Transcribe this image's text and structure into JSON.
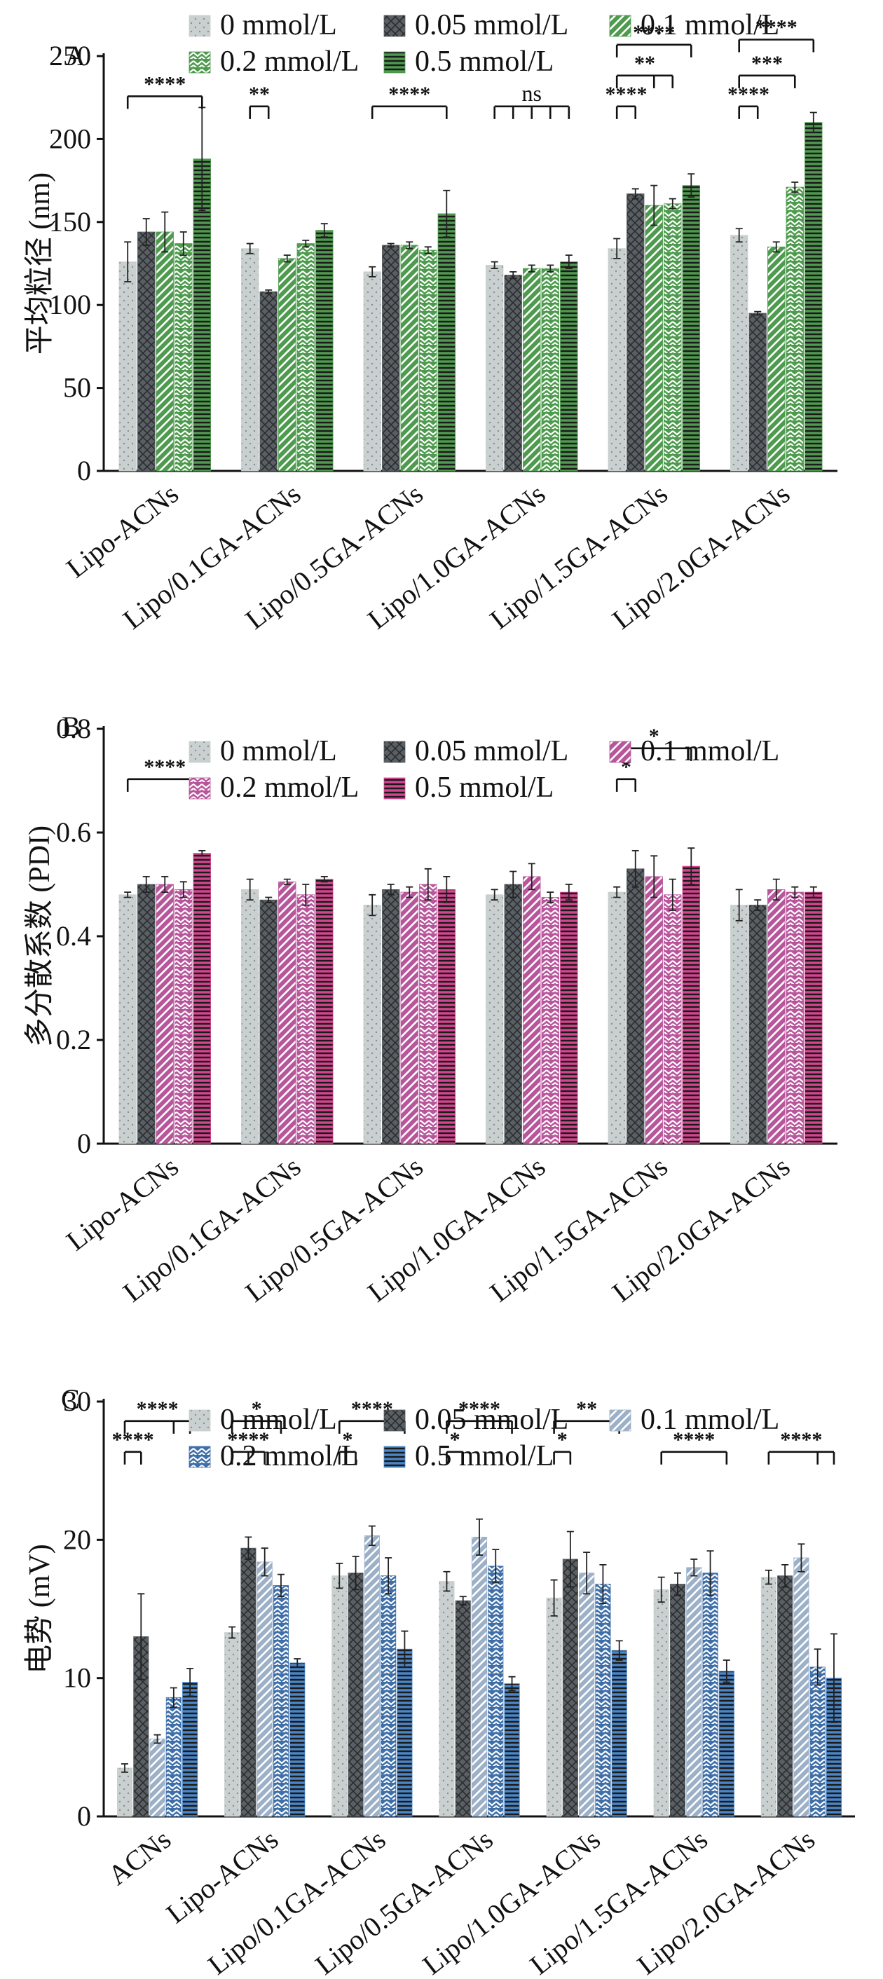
{
  "chart_data": [
    {
      "type": "bar",
      "panel": "A",
      "ylabel": "平均粒径 (nm)",
      "ylim": [
        0,
        250
      ],
      "yticks": [
        0,
        50,
        100,
        150,
        200,
        250
      ],
      "categories": [
        "Lipo-ACNs",
        "Lipo/0.1GA-ACNs",
        "Lipo/0.5GA-ACNs",
        "Lipo/1.0GA-ACNs",
        "Lipo/1.5GA-ACNs",
        "Lipo/2.0GA-ACNs"
      ],
      "series": [
        {
          "name": "0 mmol/L",
          "values": [
            126,
            134,
            120,
            124,
            134,
            142
          ],
          "errors": [
            12,
            3,
            3,
            2,
            6,
            4
          ]
        },
        {
          "name": "0.05 mmol/L",
          "values": [
            144,
            108,
            136,
            118,
            167,
            95
          ],
          "errors": [
            8,
            1,
            1,
            2,
            3,
            1
          ]
        },
        {
          "name": "0.1 mmol/L",
          "values": [
            144,
            128,
            136,
            122,
            160,
            135
          ],
          "errors": [
            12,
            2,
            2,
            2,
            12,
            3
          ]
        },
        {
          "name": "0.2 mmol/L",
          "values": [
            137,
            137,
            133,
            122,
            161,
            171
          ],
          "errors": [
            7,
            2,
            2,
            2,
            3,
            3
          ]
        },
        {
          "name": "0.5 mmol/L",
          "values": [
            188,
            145,
            155,
            126,
            172,
            210
          ],
          "errors": [
            31,
            4,
            14,
            4,
            7,
            6
          ]
        }
      ],
      "significance": [
        {
          "label": "****",
          "category": 0,
          "from": 0,
          "to": [
            4
          ]
        },
        {
          "label": "**",
          "category": 1,
          "from": 0,
          "to": [
            1
          ]
        },
        {
          "label": "****",
          "category": 2,
          "from": 0,
          "to": [
            4
          ]
        },
        {
          "label": "ns",
          "category": 3,
          "from": 0,
          "to": [
            1,
            2,
            3,
            4
          ]
        },
        {
          "label": "****",
          "category": 4,
          "from": 0,
          "to": [
            1
          ]
        },
        {
          "label": "**",
          "category": 4,
          "from": 0,
          "to": [
            2,
            3
          ]
        },
        {
          "label": "****",
          "category": 4,
          "from": 0,
          "to": [
            4
          ]
        },
        {
          "label": "****",
          "category": 5,
          "from": 0,
          "to": [
            1
          ]
        },
        {
          "label": "***",
          "category": 5,
          "from": 0,
          "to": [
            3
          ]
        },
        {
          "label": "****",
          "category": 5,
          "from": 0,
          "to": [
            4
          ]
        }
      ],
      "colors": [
        "#c9d0cf",
        "#5a5f63",
        "#4e9a4e",
        "#4e9a4e",
        "#4e9a4e"
      ]
    },
    {
      "type": "bar",
      "panel": "B",
      "ylabel": "多分散系数 (PDI)",
      "ylim": [
        0,
        0.8
      ],
      "yticks": [
        0,
        0.2,
        0.4,
        0.6,
        0.8
      ],
      "categories": [
        "Lipo-ACNs",
        "Lipo/0.1GA-ACNs",
        "Lipo/0.5GA-ACNs",
        "Lipo/1.0GA-ACNs",
        "Lipo/1.5GA-ACNs",
        "Lipo/2.0GA-ACNs"
      ],
      "series": [
        {
          "name": "0 mmol/L",
          "values": [
            0.48,
            0.49,
            0.46,
            0.48,
            0.485,
            0.46
          ],
          "errors": [
            0.005,
            0.02,
            0.02,
            0.01,
            0.01,
            0.03
          ]
        },
        {
          "name": "0.05 mmol/L",
          "values": [
            0.5,
            0.47,
            0.49,
            0.5,
            0.53,
            0.46
          ],
          "errors": [
            0.015,
            0.005,
            0.01,
            0.025,
            0.035,
            0.01
          ]
        },
        {
          "name": "0.1 mmol/L",
          "values": [
            0.5,
            0.505,
            0.485,
            0.515,
            0.515,
            0.49
          ],
          "errors": [
            0.015,
            0.005,
            0.01,
            0.025,
            0.04,
            0.02
          ]
        },
        {
          "name": "0.2 mmol/L",
          "values": [
            0.49,
            0.48,
            0.5,
            0.475,
            0.48,
            0.485
          ],
          "errors": [
            0.015,
            0.02,
            0.03,
            0.01,
            0.03,
            0.01
          ]
        },
        {
          "name": "0.5 mmol/L",
          "values": [
            0.56,
            0.51,
            0.49,
            0.485,
            0.535,
            0.485
          ],
          "errors": [
            0.005,
            0.005,
            0.025,
            0.015,
            0.035,
            0.01
          ]
        }
      ],
      "significance": [
        {
          "label": "****",
          "category": 0,
          "from": 0,
          "to": [
            4
          ]
        },
        {
          "label": "*",
          "category": 4,
          "from": 0,
          "to": [
            1
          ]
        },
        {
          "label": "*",
          "category": 4,
          "from": 0,
          "to": [
            4
          ]
        }
      ],
      "colors": [
        "#c9d0cf",
        "#5a5f63",
        "#b8569b",
        "#b8569b",
        "#d4458f"
      ]
    },
    {
      "type": "bar",
      "panel": "C",
      "ylabel": "电势 (mV)",
      "ylim": [
        0,
        30
      ],
      "yticks": [
        0,
        10,
        20,
        30
      ],
      "categories": [
        "ACNs",
        "Lipo-ACNs",
        "Lipo/0.1GA-ACNs",
        "Lipo/0.5GA-ACNs",
        "Lipo/1.0GA-ACNs",
        "Lipo/1.5GA-ACNs",
        "Lipo/2.0GA-ACNs"
      ],
      "series": [
        {
          "name": "0 mmol/L",
          "values": [
            3.5,
            13.3,
            17.4,
            17.0,
            15.8,
            16.4,
            17.3
          ],
          "errors": [
            0.3,
            0.4,
            0.9,
            0.7,
            1.3,
            0.9,
            0.5
          ]
        },
        {
          "name": "0.05 mmol/L",
          "values": [
            13.0,
            19.4,
            17.6,
            15.6,
            18.6,
            16.8,
            17.4
          ],
          "errors": [
            3.1,
            0.8,
            1.2,
            0.3,
            2.0,
            0.8,
            0.8
          ]
        },
        {
          "name": "0.1 mmol/L",
          "values": [
            5.6,
            18.4,
            20.3,
            20.2,
            17.6,
            18.0,
            18.7
          ],
          "errors": [
            0.3,
            1.0,
            0.7,
            1.3,
            1.5,
            0.6,
            1.0
          ]
        },
        {
          "name": "0.2 mmol/L",
          "values": [
            8.6,
            16.7,
            17.4,
            18.1,
            16.8,
            17.6,
            10.8
          ],
          "errors": [
            0.7,
            0.8,
            1.3,
            1.2,
            1.4,
            1.6,
            1.3
          ]
        },
        {
          "name": "0.5 mmol/L",
          "values": [
            9.7,
            11.1,
            12.1,
            9.6,
            12.0,
            10.5,
            10.0
          ],
          "errors": [
            1.0,
            0.3,
            1.3,
            0.5,
            0.7,
            0.8,
            3.2
          ]
        }
      ],
      "significance": [
        {
          "label": "****",
          "category": 0,
          "from": 0,
          "to": [
            1
          ]
        },
        {
          "label": "****",
          "category": 0,
          "from": 0,
          "to": [
            3,
            4
          ]
        },
        {
          "label": "****",
          "category": 1,
          "from": 0,
          "to": [
            1,
            2
          ]
        },
        {
          "label": "*",
          "category": 1,
          "from": 0,
          "to": [
            3
          ]
        },
        {
          "label": "*",
          "category": 2,
          "from": 0,
          "to": [
            1
          ]
        },
        {
          "label": "****",
          "category": 2,
          "from": 0,
          "to": [
            4
          ]
        },
        {
          "label": "*",
          "category": 3,
          "from": 0,
          "to": [
            1
          ]
        },
        {
          "label": "****",
          "category": 3,
          "from": 0,
          "to": [
            4
          ]
        },
        {
          "label": "*",
          "category": 4,
          "from": 0,
          "to": [
            1
          ]
        },
        {
          "label": "**",
          "category": 4,
          "from": 0,
          "to": [
            4
          ]
        },
        {
          "label": "****",
          "category": 5,
          "from": 0,
          "to": [
            4
          ]
        },
        {
          "label": "****",
          "category": 6,
          "from": 0,
          "to": [
            3,
            4
          ]
        }
      ],
      "colors": [
        "#c9d0cf",
        "#5a5f63",
        "#9cb0c8",
        "#3f6fa8",
        "#4a86c8"
      ]
    }
  ]
}
